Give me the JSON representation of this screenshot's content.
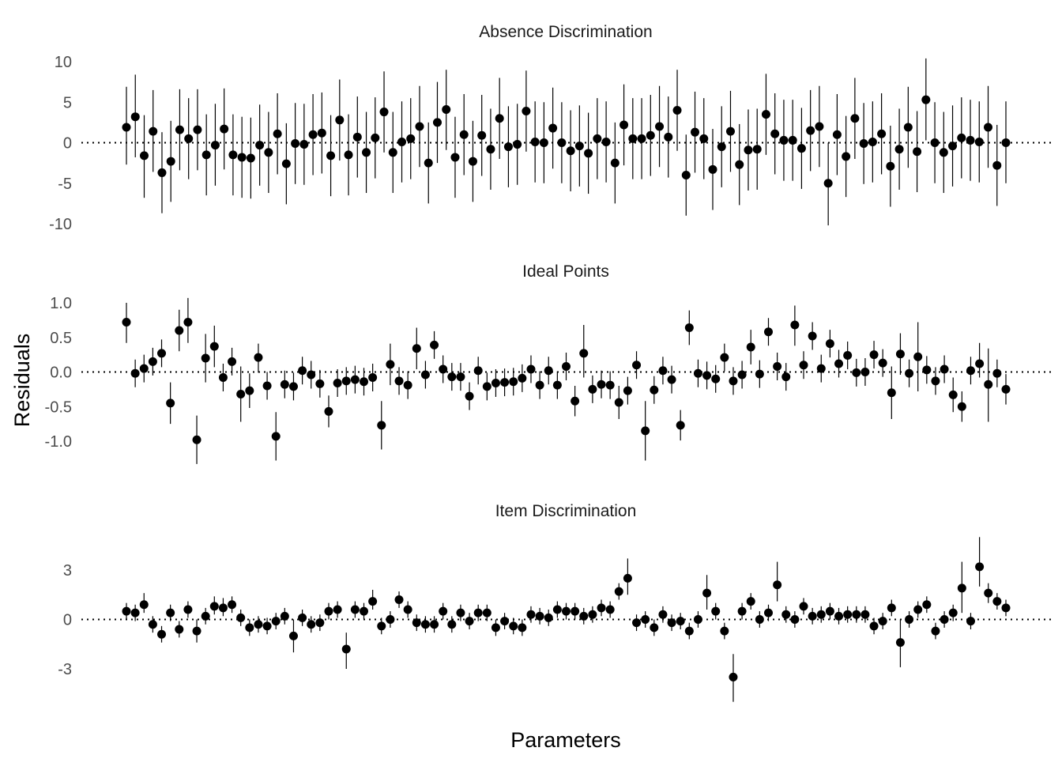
{
  "chart_data": {
    "type": "scatter",
    "xlabel": "Parameters",
    "ylabel": "Residuals",
    "reference_line": 0,
    "grid": false,
    "point_color": "#000000",
    "panels": [
      {
        "title": "Absence Discrimination",
        "yticks": [
          10,
          5,
          0,
          -5,
          -10
        ],
        "ylim": [
          -11.5,
          11.5
        ],
        "values": [
          1.9,
          3.2,
          -1.6,
          1.4,
          -3.7,
          -2.3,
          1.6,
          0.5,
          1.6,
          -1.5,
          -0.3,
          1.7,
          -1.5,
          -1.8,
          -1.9,
          -0.3,
          -1.2,
          1.1,
          -2.6,
          -0.1,
          -0.2,
          1.0,
          1.2,
          -1.6,
          2.8,
          -1.5,
          0.7,
          -1.2,
          0.6,
          3.8,
          -1.2,
          0.1,
          0.5,
          2.0,
          -2.5,
          2.5,
          4.1,
          -1.8,
          1.0,
          -2.3,
          0.9,
          -0.8,
          3.0,
          -0.5,
          -0.2,
          3.9,
          0.1,
          0.0,
          1.8,
          0.0,
          -1.0,
          -0.4,
          -1.3,
          0.5,
          0.1,
          -2.5,
          2.2,
          0.5,
          0.5,
          0.9,
          2.0,
          0.7,
          4.0,
          -4.0,
          1.3,
          0.5,
          -3.3,
          -0.5,
          1.4,
          -2.7,
          -0.9,
          -0.8,
          3.5,
          1.1,
          0.3,
          0.3,
          -0.7,
          1.5,
          2.0,
          -5.0,
          1.0,
          -1.7,
          3.0,
          -0.1,
          0.1,
          1.1,
          -2.9,
          -0.8,
          1.9,
          -1.1,
          5.3,
          0.0,
          -1.2,
          -0.4,
          0.6,
          0.3,
          0.1,
          1.9,
          -2.8,
          0.0
        ],
        "lower": [
          -2.7,
          -1.8,
          -6.8,
          -3.6,
          -8.7,
          -7.3,
          -3.4,
          -4.5,
          -3.4,
          -6.5,
          -5.3,
          -3.3,
          -6.5,
          -6.8,
          -6.9,
          -5.3,
          -6.2,
          -3.9,
          -7.6,
          -5.1,
          -5.2,
          -4.0,
          -3.8,
          -6.6,
          -2.2,
          -6.5,
          -4.3,
          -6.2,
          -4.4,
          -1.2,
          -6.2,
          -4.9,
          -4.5,
          -3.0,
          -7.5,
          -2.5,
          -0.9,
          -6.8,
          -4.0,
          -7.3,
          -4.1,
          -5.8,
          -2.0,
          -5.5,
          -5.2,
          -1.1,
          -4.9,
          -5.0,
          -3.2,
          -5.0,
          -6.0,
          -5.4,
          -6.3,
          -4.5,
          -4.9,
          -7.5,
          -2.8,
          -4.5,
          -4.5,
          -4.1,
          -3.0,
          -4.3,
          -1.0,
          -9.0,
          -3.7,
          -4.5,
          -8.3,
          -5.5,
          -3.6,
          -7.7,
          -5.9,
          -5.8,
          -1.5,
          -3.9,
          -4.7,
          -4.7,
          -5.7,
          -3.5,
          -3.0,
          -10.2,
          -4.0,
          -6.7,
          -2.0,
          -5.1,
          -4.9,
          -3.9,
          -7.9,
          -5.8,
          -3.1,
          -6.1,
          0.3,
          -5.0,
          -6.2,
          -5.4,
          -4.4,
          -4.7,
          -4.9,
          -3.1,
          -7.8,
          -5.0
        ],
        "upper": [
          6.9,
          8.4,
          3.4,
          6.5,
          1.3,
          2.7,
          6.6,
          5.5,
          6.6,
          3.5,
          4.8,
          6.7,
          3.5,
          3.2,
          3.1,
          4.7,
          3.8,
          6.1,
          2.4,
          4.9,
          4.8,
          6.0,
          6.2,
          3.4,
          7.8,
          3.5,
          5.7,
          3.8,
          5.6,
          8.8,
          3.8,
          5.1,
          5.5,
          7.0,
          2.5,
          7.5,
          9.0,
          3.2,
          6.0,
          2.7,
          5.9,
          4.2,
          8.0,
          4.5,
          4.8,
          8.9,
          5.1,
          5.0,
          6.8,
          5.0,
          4.0,
          4.6,
          3.7,
          5.5,
          5.1,
          2.5,
          7.2,
          5.5,
          5.5,
          5.9,
          7.0,
          5.7,
          9.0,
          1.0,
          6.3,
          5.5,
          1.7,
          4.5,
          6.4,
          2.3,
          4.1,
          4.2,
          8.5,
          6.1,
          5.3,
          5.3,
          4.3,
          6.5,
          7.0,
          0.0,
          6.0,
          3.3,
          8.0,
          4.9,
          5.1,
          6.1,
          2.1,
          4.2,
          6.9,
          3.9,
          10.4,
          5.0,
          3.8,
          4.6,
          5.6,
          5.3,
          5.1,
          7.0,
          2.2,
          5.1
        ]
      },
      {
        "title": "Ideal Points",
        "yticks": [
          1.0,
          0.5,
          0.0,
          -0.5,
          -1.0
        ],
        "ylim": [
          -1.4,
          1.1
        ],
        "values": [
          0.72,
          -0.02,
          0.05,
          0.15,
          0.27,
          -0.45,
          0.6,
          0.72,
          -0.98,
          0.2,
          0.37,
          -0.08,
          0.15,
          -0.32,
          -0.27,
          0.21,
          -0.2,
          -0.93,
          -0.18,
          -0.21,
          0.02,
          -0.04,
          -0.17,
          -0.57,
          -0.16,
          -0.13,
          -0.11,
          -0.14,
          -0.08,
          -0.77,
          0.11,
          -0.13,
          -0.19,
          0.34,
          -0.04,
          0.39,
          0.04,
          -0.07,
          -0.07,
          -0.35,
          0.02,
          -0.21,
          -0.16,
          -0.15,
          -0.14,
          -0.09,
          0.04,
          -0.19,
          0.02,
          -0.19,
          0.08,
          -0.42,
          0.27,
          -0.25,
          -0.18,
          -0.19,
          -0.44,
          -0.27,
          0.1,
          -0.85,
          -0.26,
          0.02,
          -0.11,
          -0.77,
          0.64,
          -0.02,
          -0.05,
          -0.1,
          0.21,
          -0.13,
          -0.04,
          0.36,
          -0.03,
          0.58,
          0.08,
          -0.07,
          0.68,
          0.1,
          0.52,
          0.05,
          0.41,
          0.12,
          0.24,
          -0.01,
          0.0,
          0.25,
          0.13,
          -0.3,
          0.26,
          -0.02,
          0.22,
          0.03,
          -0.13,
          0.04,
          -0.33,
          -0.5,
          0.02,
          0.12,
          -0.18,
          -0.02,
          -0.25
        ],
        "lower": [
          0.42,
          -0.22,
          -0.15,
          -0.05,
          0.07,
          -0.75,
          0.3,
          0.42,
          -1.33,
          -0.15,
          0.07,
          -0.28,
          -0.05,
          -0.72,
          -0.52,
          -0.01,
          -0.4,
          -1.28,
          -0.38,
          -0.41,
          -0.18,
          -0.24,
          -0.37,
          -0.8,
          -0.36,
          -0.33,
          -0.31,
          -0.34,
          -0.28,
          -1.12,
          -0.19,
          -0.33,
          -0.39,
          0.04,
          -0.24,
          0.19,
          -0.16,
          -0.27,
          -0.27,
          -0.55,
          -0.18,
          -0.41,
          -0.36,
          -0.35,
          -0.34,
          -0.29,
          -0.16,
          -0.39,
          -0.18,
          -0.39,
          -0.12,
          -0.64,
          -0.08,
          -0.45,
          -0.38,
          -0.39,
          -0.68,
          -0.47,
          -0.1,
          -1.28,
          -0.46,
          -0.18,
          -0.31,
          -0.99,
          0.39,
          -0.22,
          -0.25,
          -0.3,
          0.01,
          -0.33,
          -0.24,
          0.11,
          -0.23,
          0.38,
          -0.12,
          -0.27,
          0.38,
          -0.1,
          0.32,
          -0.15,
          0.21,
          -0.08,
          0.04,
          -0.21,
          -0.2,
          0.05,
          -0.07,
          -0.68,
          -0.04,
          -0.22,
          -0.28,
          -0.17,
          -0.33,
          -0.16,
          -0.58,
          -0.72,
          -0.18,
          -0.08,
          -0.72,
          -0.22,
          -0.47
        ],
        "upper": [
          1.0,
          0.18,
          0.25,
          0.35,
          0.47,
          -0.15,
          0.9,
          1.07,
          -0.63,
          0.55,
          0.67,
          0.12,
          0.35,
          0.08,
          -0.02,
          0.41,
          0.0,
          -0.58,
          0.02,
          -0.01,
          0.22,
          0.16,
          0.03,
          -0.34,
          0.04,
          0.07,
          0.09,
          0.06,
          0.12,
          -0.42,
          0.41,
          0.07,
          0.01,
          0.64,
          0.16,
          0.59,
          0.24,
          0.13,
          0.13,
          -0.15,
          0.22,
          -0.01,
          0.04,
          0.05,
          0.06,
          0.11,
          0.24,
          0.01,
          0.22,
          0.01,
          0.28,
          -0.2,
          0.68,
          -0.05,
          0.02,
          0.01,
          -0.2,
          -0.07,
          0.3,
          -0.42,
          -0.06,
          0.22,
          0.09,
          -0.55,
          0.89,
          0.18,
          0.15,
          0.1,
          0.41,
          0.07,
          0.16,
          0.61,
          0.17,
          0.78,
          0.28,
          0.13,
          0.96,
          0.3,
          0.72,
          0.25,
          0.61,
          0.32,
          0.44,
          0.19,
          0.2,
          0.45,
          0.33,
          0.08,
          0.56,
          0.18,
          0.72,
          0.23,
          0.07,
          0.24,
          -0.08,
          -0.28,
          0.22,
          0.42,
          0.34,
          0.18,
          -0.03
        ]
      },
      {
        "title": "Item Discrimination",
        "yticks": [
          3,
          0,
          -3
        ],
        "ylim": [
          -5.5,
          5.0
        ],
        "values": [
          0.5,
          0.4,
          0.9,
          -0.3,
          -0.9,
          0.4,
          -0.6,
          0.6,
          -0.7,
          0.2,
          0.8,
          0.7,
          0.9,
          0.1,
          -0.5,
          -0.3,
          -0.4,
          -0.1,
          0.2,
          -1.0,
          0.1,
          -0.3,
          -0.2,
          0.5,
          0.6,
          -1.8,
          0.6,
          0.5,
          1.1,
          -0.4,
          0.0,
          1.2,
          0.6,
          -0.2,
          -0.3,
          -0.3,
          0.5,
          -0.3,
          0.4,
          -0.1,
          0.4,
          0.4,
          -0.5,
          -0.1,
          -0.4,
          -0.5,
          0.3,
          0.2,
          0.1,
          0.6,
          0.5,
          0.5,
          0.2,
          0.3,
          0.7,
          0.6,
          1.7,
          2.5,
          -0.2,
          0.0,
          -0.5,
          0.3,
          -0.2,
          -0.1,
          -0.7,
          0.0,
          1.6,
          0.5,
          -0.7,
          -3.5,
          0.5,
          1.1,
          0.0,
          0.4,
          2.1,
          0.3,
          0.0,
          0.8,
          0.2,
          0.3,
          0.5,
          0.2,
          0.3,
          0.3,
          0.3,
          -0.4,
          -0.1,
          0.7,
          -1.4,
          0.0,
          0.6,
          0.9,
          -0.7,
          0.0,
          0.4,
          1.9,
          -0.1,
          3.2,
          1.6,
          1.1,
          0.7
        ],
        "lower": [
          0.0,
          -0.1,
          0.4,
          -0.8,
          -1.4,
          -0.1,
          -1.1,
          0.1,
          -1.4,
          -0.3,
          0.3,
          0.2,
          0.4,
          -0.4,
          -1.0,
          -0.8,
          -0.9,
          -0.6,
          -0.3,
          -2.0,
          -0.4,
          -0.8,
          -0.7,
          0.0,
          0.1,
          -3.0,
          0.1,
          0.0,
          0.6,
          -0.9,
          -0.5,
          0.7,
          0.1,
          -0.7,
          -0.8,
          -0.8,
          0.0,
          -0.8,
          -0.1,
          -0.6,
          -0.1,
          -0.1,
          -1.0,
          -0.6,
          -0.9,
          -1.0,
          -0.2,
          -0.3,
          -0.4,
          0.1,
          0.0,
          0.0,
          -0.3,
          -0.2,
          0.2,
          0.1,
          1.2,
          1.5,
          -0.7,
          -0.5,
          -1.0,
          -0.2,
          -0.7,
          -0.6,
          -1.2,
          -0.5,
          0.6,
          0.0,
          -1.2,
          -5.0,
          0.0,
          0.6,
          -0.5,
          -0.1,
          1.1,
          -0.2,
          -0.5,
          0.3,
          -0.3,
          -0.2,
          0.0,
          -0.3,
          -0.2,
          -0.2,
          -0.2,
          -0.9,
          -0.6,
          0.2,
          -2.9,
          -0.5,
          0.1,
          0.4,
          -1.2,
          -0.5,
          -0.1,
          0.4,
          -0.6,
          2.0,
          1.0,
          0.6,
          0.2
        ],
        "upper": [
          1.0,
          0.9,
          1.6,
          0.2,
          -0.4,
          0.9,
          -0.1,
          1.1,
          0.0,
          0.7,
          1.4,
          1.3,
          1.4,
          0.6,
          0.0,
          0.2,
          0.1,
          0.4,
          0.7,
          0.0,
          0.6,
          0.2,
          0.3,
          1.0,
          1.1,
          -0.8,
          1.1,
          1.0,
          1.8,
          0.1,
          0.5,
          1.7,
          1.1,
          0.3,
          0.2,
          0.2,
          1.0,
          0.2,
          0.9,
          0.4,
          0.9,
          0.9,
          0.0,
          0.4,
          0.1,
          0.0,
          0.8,
          0.7,
          0.6,
          1.1,
          1.0,
          1.0,
          0.7,
          0.8,
          1.2,
          1.1,
          2.2,
          3.7,
          0.3,
          0.5,
          0.0,
          0.8,
          0.3,
          0.4,
          -0.2,
          0.5,
          2.7,
          1.0,
          -0.2,
          -2.1,
          1.0,
          1.6,
          0.5,
          0.9,
          3.5,
          0.8,
          0.5,
          1.3,
          0.7,
          0.8,
          1.0,
          0.7,
          0.8,
          0.8,
          0.8,
          0.1,
          0.4,
          1.2,
          0.0,
          0.5,
          1.1,
          1.4,
          -0.2,
          0.5,
          0.9,
          3.5,
          0.4,
          5.0,
          2.2,
          1.6,
          1.2
        ]
      }
    ]
  }
}
